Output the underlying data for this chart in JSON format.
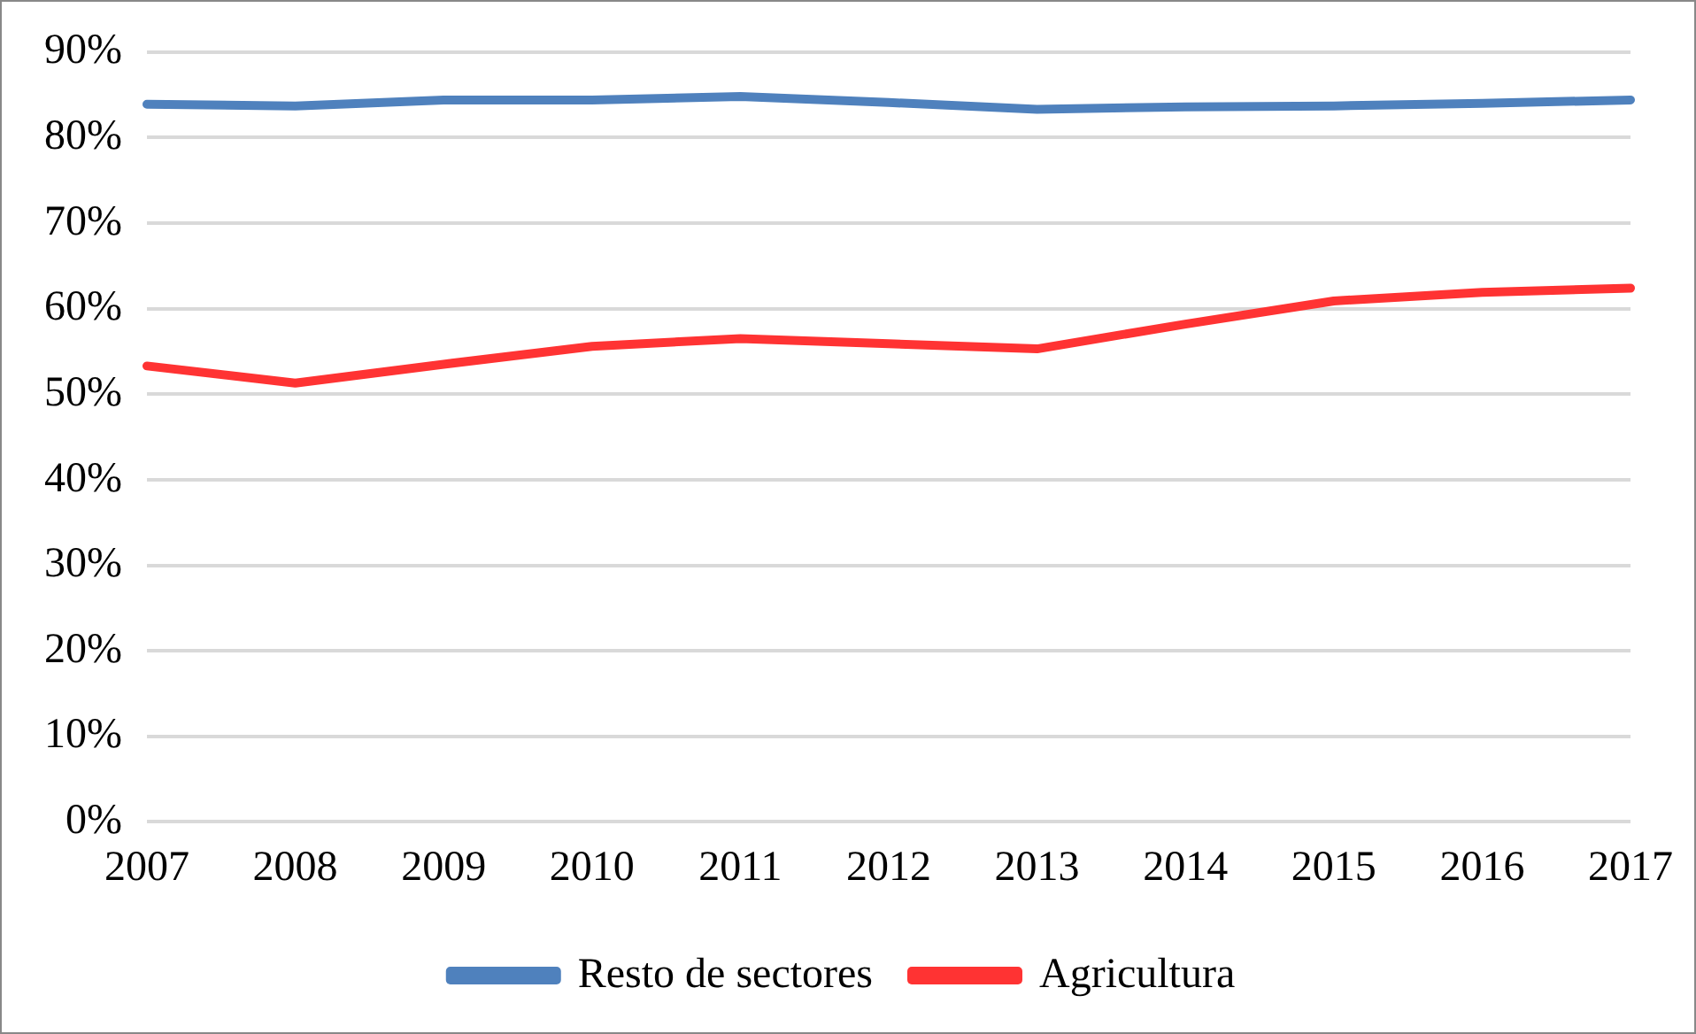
{
  "chart_data": {
    "type": "line",
    "categories": [
      "2007",
      "2008",
      "2009",
      "2010",
      "2011",
      "2012",
      "2013",
      "2014",
      "2015",
      "2016",
      "2017"
    ],
    "series": [
      {
        "name": "Resto de sectores",
        "color": "#4f81bd",
        "values": [
          83.9,
          83.7,
          84.4,
          84.4,
          84.8,
          84.1,
          83.3,
          83.6,
          83.7,
          84.0,
          84.4
        ]
      },
      {
        "name": "Agricultura",
        "color": "#ff3333",
        "values": [
          53.3,
          51.3,
          53.5,
          55.6,
          56.5,
          55.9,
          55.3,
          58.2,
          60.9,
          61.9,
          62.4
        ]
      }
    ],
    "ylim": [
      0,
      90
    ],
    "yticks": [
      {
        "value": 0,
        "label": "0%"
      },
      {
        "value": 10,
        "label": "10%"
      },
      {
        "value": 20,
        "label": "20%"
      },
      {
        "value": 30,
        "label": "30%"
      },
      {
        "value": 40,
        "label": "40%"
      },
      {
        "value": 50,
        "label": "50%"
      },
      {
        "value": 60,
        "label": "60%"
      },
      {
        "value": 70,
        "label": "70%"
      },
      {
        "value": 80,
        "label": "80%"
      },
      {
        "value": 90,
        "label": "90%"
      }
    ],
    "grid": "y",
    "legend": "bottom",
    "marker": "none",
    "line_style": "solid"
  }
}
